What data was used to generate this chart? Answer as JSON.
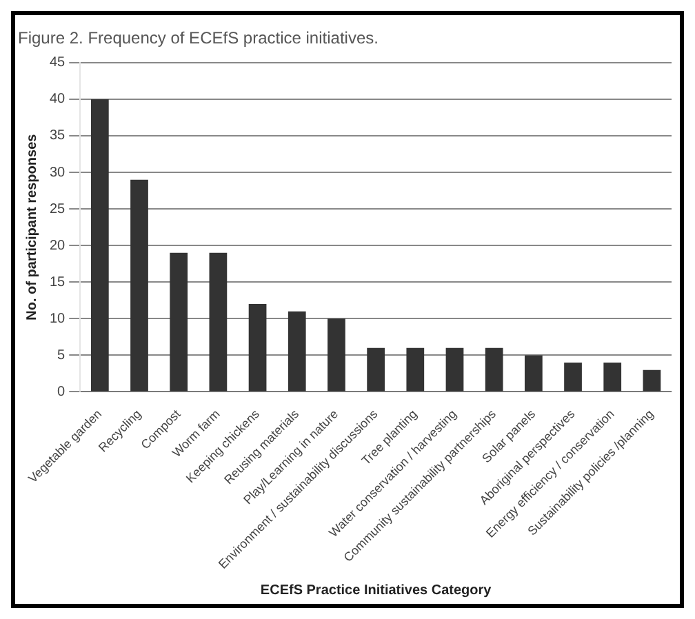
{
  "chart_data": {
    "type": "bar",
    "title": "Figure 2. Frequency of ECEfS practice initiatives.",
    "xlabel": "ECEfS Practice Initiatives Category",
    "ylabel": "No. of participant responses",
    "categories": [
      "Vegetable garden",
      "Recycling",
      "Compost",
      "Worm farm",
      "Keeping chickens",
      "Reusing materials",
      "Play/Learning in nature",
      "Environment / sustainability discussions",
      "Tree planting",
      "Water conservation / harvesting",
      "Community sustainability partnerships",
      "Solar panels",
      "Aboriginal perspectives",
      "Energy efficiency / conservation",
      "Sustainability policies /planning"
    ],
    "values": [
      40,
      29,
      19,
      19,
      12,
      11,
      10,
      6,
      6,
      6,
      6,
      5,
      4,
      4,
      3
    ],
    "color": "#333333",
    "ylim": [
      0,
      45
    ],
    "yticks": [
      0,
      5,
      10,
      15,
      20,
      25,
      30,
      35,
      40,
      45
    ],
    "grid": "y"
  }
}
